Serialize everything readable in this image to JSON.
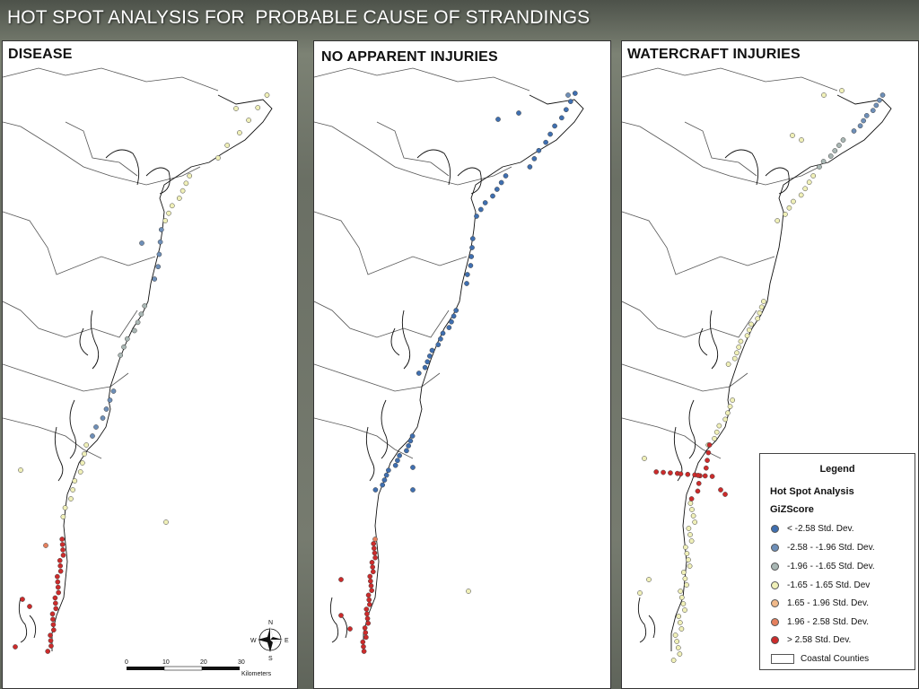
{
  "slide": {
    "title": "HOT SPOT ANALYSIS FOR  PROBABLE CAUSE OF STRANDINGS"
  },
  "panels": [
    {
      "id": "disease",
      "title": "DISEASE"
    },
    {
      "id": "no-injuries",
      "title": "NO APPARENT INJURIES"
    },
    {
      "id": "watercraft",
      "title": "WATERCRAFT INJURIES"
    }
  ],
  "colors": {
    "cold_99": "#3f6fb0",
    "cold_95": "#6e8fb8",
    "cold_90": "#a9b7b4",
    "neutral": "#f0f0b8",
    "hot_90": "#f0b98a",
    "hot_95": "#e5805e",
    "hot_99": "#cc2b2b",
    "coast_line": "#111111",
    "county_line": "#555555"
  },
  "legend": {
    "title": "Legend",
    "layer_title": "Hot Spot Analysis",
    "field_name": "GiZScore",
    "classes": [
      {
        "label": "< -2.58 Std. Dev.",
        "color_key": "cold_99"
      },
      {
        "label": "-2.58 - -1.96 Std. Dev.",
        "color_key": "cold_95"
      },
      {
        "label": "-1.96 - -1.65 Std. Dev.",
        "color_key": "cold_90"
      },
      {
        "label": "-1.65 - 1.65 Std. Dev",
        "color_key": "neutral"
      },
      {
        "label": "1.65 - 1.96 Std. Dev.",
        "color_key": "hot_90"
      },
      {
        "label": "1.96 - 2.58 Std. Dev.",
        "color_key": "hot_95"
      },
      {
        "label": "> 2.58 Std. Dev.",
        "color_key": "hot_99"
      }
    ],
    "coastal_label": "Coastal Counties"
  },
  "compass": {
    "n": "N",
    "s": "S",
    "e": "E",
    "w": "W"
  },
  "scale_bar": {
    "ticks": [
      "0",
      "10",
      "20",
      "30"
    ],
    "unit": "Kilometers"
  }
}
